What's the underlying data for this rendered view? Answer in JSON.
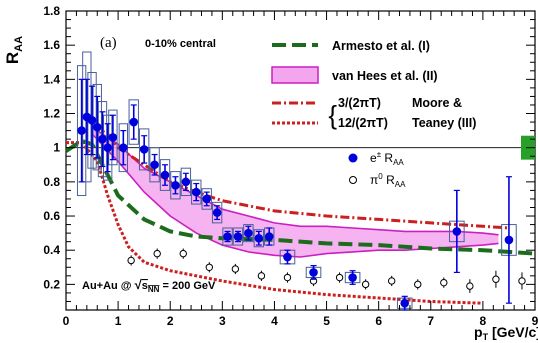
{
  "chart_data": {
    "type": "scatter",
    "panel_label": "(a)",
    "centrality": "0-10% central",
    "system_energy": "Au+Au @ √s_NN = 200 GeV",
    "xlabel": "p_T [GeV/c]",
    "ylabel": "R_AA",
    "xlim": [
      0,
      9
    ],
    "ylim": [
      0.05,
      1.8
    ],
    "x_ticks": [
      0,
      1,
      2,
      3,
      4,
      5,
      6,
      7,
      8,
      9
    ],
    "y_ticks": [
      0.2,
      0.4,
      0.6,
      0.8,
      1,
      1.2,
      1.4,
      1.6,
      1.8
    ],
    "reference_line_y": 1,
    "legend": {
      "armesto": "Armesto et al. (I)",
      "vanhees": "van Hees et al. (II)",
      "mt_brace": "}",
      "mt_line1": "3/(2πT)",
      "mt_line2": "12/(2πT)",
      "mt_label1": "Moore &",
      "mt_label2": "Teaney (III)",
      "electron": "e± R_AA",
      "pion": "π0 R_AA"
    },
    "colors": {
      "electron": "#0000dd",
      "pion_edge": "#000000",
      "box": "#4a5f9a",
      "armesto": "#1d6b1d",
      "vanhees_fill": "#f3a6ee",
      "vanhees_edge": "#cc1fbf",
      "moore_teaney": "#cc1f1f",
      "norm_box": "#27a02a"
    },
    "series": [
      {
        "name": "e± R_AA",
        "points": [
          {
            "x": 0.3,
            "y": 1.1,
            "err": 0.3,
            "sys": 0.38
          },
          {
            "x": 0.4,
            "y": 1.18,
            "err": 0.22,
            "sys": 0.38
          },
          {
            "x": 0.5,
            "y": 1.16,
            "err": 0.2,
            "sys": 0.28
          },
          {
            "x": 0.6,
            "y": 1.12,
            "err": 0.18,
            "sys": 0.25
          },
          {
            "x": 0.7,
            "y": 1.05,
            "err": 0.16,
            "sys": 0.22
          },
          {
            "x": 0.8,
            "y": 1.0,
            "err": 0.14,
            "sys": 0.19
          },
          {
            "x": 0.9,
            "y": 1.06,
            "err": 0.13,
            "sys": 0.16
          },
          {
            "x": 1.1,
            "y": 1.0,
            "err": 0.1,
            "sys": 0.14
          },
          {
            "x": 1.3,
            "y": 1.15,
            "err": 0.1,
            "sys": 0.13
          },
          {
            "x": 1.5,
            "y": 0.99,
            "err": 0.08,
            "sys": 0.12
          },
          {
            "x": 1.7,
            "y": 0.9,
            "err": 0.06,
            "sys": 0.1
          },
          {
            "x": 1.9,
            "y": 0.84,
            "err": 0.06,
            "sys": 0.09
          },
          {
            "x": 2.1,
            "y": 0.78,
            "err": 0.05,
            "sys": 0.08
          },
          {
            "x": 2.3,
            "y": 0.8,
            "err": 0.05,
            "sys": 0.08
          },
          {
            "x": 2.5,
            "y": 0.74,
            "err": 0.05,
            "sys": 0.07
          },
          {
            "x": 2.7,
            "y": 0.7,
            "err": 0.04,
            "sys": 0.06
          },
          {
            "x": 2.9,
            "y": 0.62,
            "err": 0.04,
            "sys": 0.06
          },
          {
            "x": 3.1,
            "y": 0.48,
            "err": 0.03,
            "sys": 0.05
          },
          {
            "x": 3.3,
            "y": 0.48,
            "err": 0.03,
            "sys": 0.05
          },
          {
            "x": 3.5,
            "y": 0.5,
            "err": 0.04,
            "sys": 0.05
          },
          {
            "x": 3.7,
            "y": 0.47,
            "err": 0.04,
            "sys": 0.05
          },
          {
            "x": 3.9,
            "y": 0.48,
            "err": 0.05,
            "sys": 0.05
          },
          {
            "x": 4.25,
            "y": 0.36,
            "err": 0.04,
            "sys": 0.04
          },
          {
            "x": 4.75,
            "y": 0.27,
            "err": 0.04,
            "sys": 0.03
          },
          {
            "x": 5.5,
            "y": 0.24,
            "err": 0.04,
            "sys": 0.03
          },
          {
            "x": 6.5,
            "y": 0.09,
            "err": 0.04,
            "sys": 0.03
          },
          {
            "x": 7.5,
            "y": 0.51,
            "err": 0.24,
            "sys": 0.06
          },
          {
            "x": 8.5,
            "y": 0.46,
            "err": 0.37,
            "sys": 0.09
          }
        ]
      },
      {
        "name": "π0 R_AA",
        "points": [
          {
            "x": 1.25,
            "y": 0.34,
            "err": 0.03
          },
          {
            "x": 1.75,
            "y": 0.38,
            "err": 0.03
          },
          {
            "x": 2.25,
            "y": 0.38,
            "err": 0.03
          },
          {
            "x": 2.75,
            "y": 0.3,
            "err": 0.03
          },
          {
            "x": 3.25,
            "y": 0.29,
            "err": 0.03
          },
          {
            "x": 3.75,
            "y": 0.25,
            "err": 0.03
          },
          {
            "x": 4.25,
            "y": 0.24,
            "err": 0.03
          },
          {
            "x": 4.75,
            "y": 0.22,
            "err": 0.03
          },
          {
            "x": 5.25,
            "y": 0.24,
            "err": 0.03
          },
          {
            "x": 5.75,
            "y": 0.2,
            "err": 0.03
          },
          {
            "x": 6.25,
            "y": 0.22,
            "err": 0.03
          },
          {
            "x": 6.75,
            "y": 0.2,
            "err": 0.03
          },
          {
            "x": 7.25,
            "y": 0.21,
            "err": 0.03
          },
          {
            "x": 7.75,
            "y": 0.19,
            "err": 0.04
          },
          {
            "x": 8.25,
            "y": 0.23,
            "err": 0.05
          },
          {
            "x": 8.75,
            "y": 0.22,
            "err": 0.05
          }
        ]
      }
    ],
    "curves": {
      "armesto": [
        [
          0,
          0.98
        ],
        [
          0.3,
          1.04
        ],
        [
          0.5,
          1.02
        ],
        [
          0.7,
          0.9
        ],
        [
          1.0,
          0.72
        ],
        [
          1.5,
          0.58
        ],
        [
          2.0,
          0.51
        ],
        [
          2.5,
          0.48
        ],
        [
          3.0,
          0.47
        ],
        [
          4.0,
          0.46
        ],
        [
          5.0,
          0.44
        ],
        [
          6.0,
          0.43
        ],
        [
          7.0,
          0.41
        ],
        [
          8.0,
          0.4
        ],
        [
          9.0,
          0.38
        ]
      ],
      "vanhees_upper": [
        [
          0.5,
          1.12
        ],
        [
          1.0,
          1.02
        ],
        [
          1.5,
          0.88
        ],
        [
          2.0,
          0.8
        ],
        [
          2.5,
          0.72
        ],
        [
          3.0,
          0.64
        ],
        [
          3.5,
          0.6
        ],
        [
          4.0,
          0.56
        ],
        [
          4.5,
          0.54
        ],
        [
          5.0,
          0.54
        ],
        [
          5.5,
          0.53
        ],
        [
          6.0,
          0.52
        ],
        [
          6.5,
          0.51
        ],
        [
          7.0,
          0.51
        ],
        [
          7.5,
          0.51
        ],
        [
          8.0,
          0.5
        ],
        [
          8.3,
          0.49
        ]
      ],
      "vanhees_lower": [
        [
          0.5,
          1.08
        ],
        [
          1.0,
          0.92
        ],
        [
          1.5,
          0.74
        ],
        [
          2.0,
          0.6
        ],
        [
          2.5,
          0.5
        ],
        [
          3.0,
          0.43
        ],
        [
          3.5,
          0.39
        ],
        [
          4.0,
          0.37
        ],
        [
          4.5,
          0.36
        ],
        [
          5.0,
          0.38
        ],
        [
          5.5,
          0.39
        ],
        [
          6.0,
          0.4
        ],
        [
          6.5,
          0.4
        ],
        [
          7.0,
          0.41
        ],
        [
          7.5,
          0.42
        ],
        [
          8.0,
          0.43
        ],
        [
          8.3,
          0.44
        ]
      ],
      "moore_3": [
        [
          0.5,
          1.13
        ],
        [
          0.8,
          1.08
        ],
        [
          1.0,
          1.0
        ],
        [
          1.5,
          0.9
        ],
        [
          2.0,
          0.8
        ],
        [
          2.5,
          0.74
        ],
        [
          3.0,
          0.69
        ],
        [
          4.0,
          0.63
        ],
        [
          5.0,
          0.6
        ],
        [
          6.0,
          0.58
        ],
        [
          7.0,
          0.56
        ],
        [
          8.0,
          0.54
        ],
        [
          8.5,
          0.53
        ]
      ],
      "moore_12": [
        [
          0,
          1.03
        ],
        [
          0.3,
          1.03
        ],
        [
          0.6,
          0.92
        ],
        [
          0.8,
          0.72
        ],
        [
          1.0,
          0.55
        ],
        [
          1.2,
          0.42
        ],
        [
          1.5,
          0.33
        ],
        [
          2.0,
          0.28
        ],
        [
          3.0,
          0.22
        ],
        [
          4.0,
          0.17
        ],
        [
          5.0,
          0.14
        ],
        [
          6.0,
          0.12
        ],
        [
          7.0,
          0.1
        ],
        [
          8.0,
          0.09
        ]
      ]
    }
  }
}
